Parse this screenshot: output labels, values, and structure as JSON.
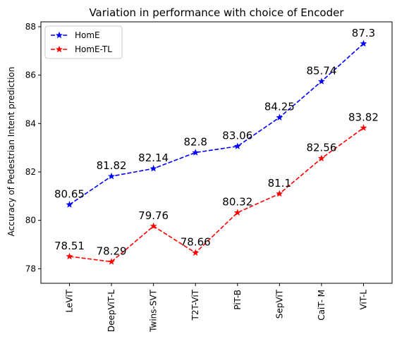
{
  "chart_data": {
    "type": "line",
    "title": "Variation in performance with choice of Encoder",
    "xlabel": "",
    "ylabel": "Accuracy of Pedestrian Intent prediction",
    "categories": [
      "LeViT",
      "DeepViT-L",
      "Twins-SVT",
      "T2T-ViT",
      "PiT-B",
      "SepViT",
      "CaiT- M",
      "ViT-L"
    ],
    "ylim": [
      77.4,
      88.2
    ],
    "yticks": [
      "78",
      "80",
      "82",
      "84",
      "86",
      "88"
    ],
    "grid": false,
    "legend_position": "top-left",
    "series": [
      {
        "name": "HomE",
        "color": "#0000ff",
        "values": [
          80.65,
          81.82,
          82.14,
          82.8,
          83.06,
          84.25,
          85.74,
          87.3
        ],
        "labels": [
          "80.65",
          "81.82",
          "82.14",
          "82.8",
          "83.06",
          "84.25",
          "85.74",
          "87.3"
        ]
      },
      {
        "name": "HomE-TL",
        "color": "#ff0000",
        "values": [
          78.51,
          78.29,
          79.76,
          78.66,
          80.32,
          81.1,
          82.56,
          83.82
        ],
        "labels": [
          "78.51",
          "78.29",
          "79.76",
          "78.66",
          "80.32",
          "81.1",
          "82.56",
          "83.82"
        ]
      }
    ]
  }
}
